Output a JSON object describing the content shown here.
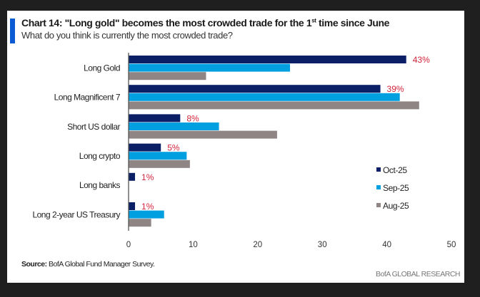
{
  "header": {
    "title_main": "Chart 14: \"Long gold\" becomes the most crowded trade for the 1",
    "title_sup": "st",
    "title_end": " time since June",
    "subtitle": "What do you think is currently the most crowded trade?"
  },
  "footer": {
    "source_label": "Source:",
    "source_text": " BofA Global Fund Manager Survey.",
    "brand": "BofA GLOBAL RESEARCH"
  },
  "chart_data": {
    "type": "bar",
    "orientation": "horizontal",
    "title": "Chart 14: \"Long gold\" becomes the most crowded trade for the 1st time since June",
    "subtitle": "What do you think is currently the most crowded trade?",
    "xlabel": "",
    "ylabel": "",
    "xlim": [
      0,
      50
    ],
    "xticks": [
      0,
      10,
      20,
      30,
      40,
      50
    ],
    "grid": false,
    "legend_position": "right",
    "categories": [
      "Long Gold",
      "Long Magnificent 7",
      "Short US dollar",
      "Long crypto",
      "Long banks",
      "Long 2-year US Treasury"
    ],
    "series": [
      {
        "name": "Oct-25",
        "color": "#0b1f66",
        "values": [
          43,
          39,
          8,
          5,
          1,
          1
        ],
        "data_labels": [
          "43%",
          "39%",
          "8%",
          "5%",
          "1%",
          "1%"
        ]
      },
      {
        "name": "Sep-25",
        "color": "#009fdf",
        "values": [
          25,
          42,
          14,
          9,
          0,
          5.5
        ]
      },
      {
        "name": "Aug-25",
        "color": "#8f8585",
        "values": [
          12,
          45,
          23,
          9.5,
          0,
          3.5
        ]
      }
    ],
    "label_color": "#d2243a"
  }
}
